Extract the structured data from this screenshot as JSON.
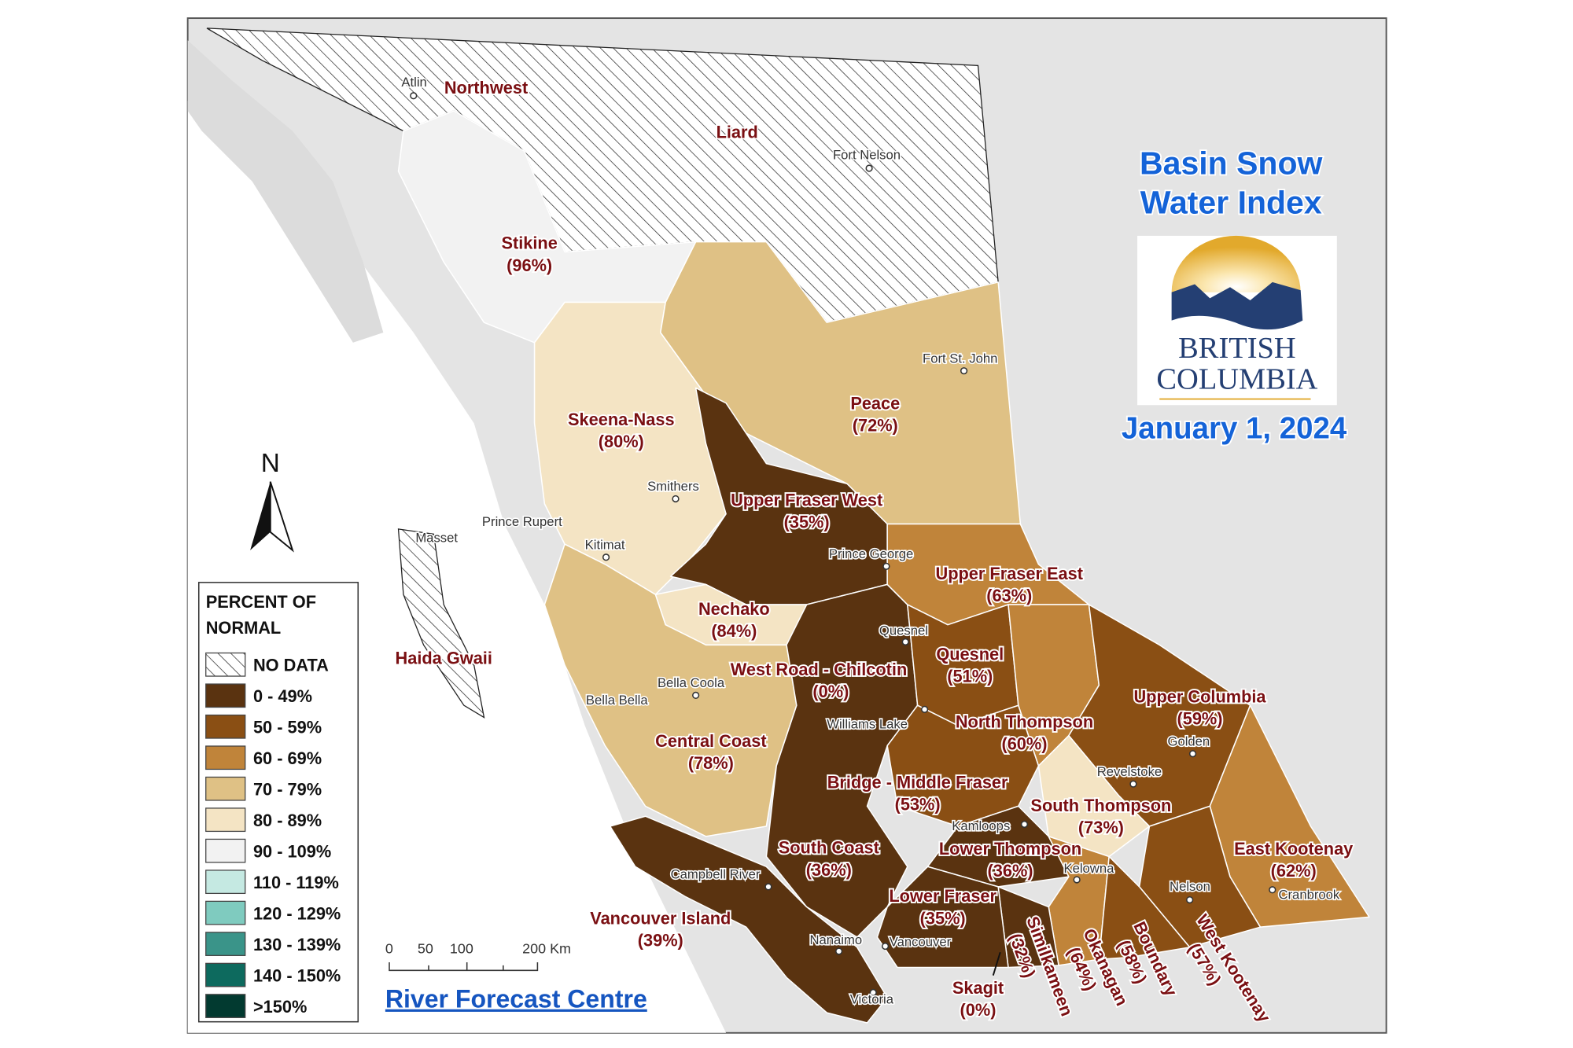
{
  "title": {
    "line1": "Basin Snow",
    "line2": "Water Index",
    "date": "January 1, 2024",
    "color": "#1463d8"
  },
  "logo": {
    "line1": "BRITISH",
    "line2": "COLUMBIA"
  },
  "credit": "River Forecast Centre",
  "north_arrow": "N",
  "scale_bar": {
    "labels": [
      "0",
      "50",
      "100",
      "200 Km"
    ]
  },
  "legend": {
    "title_line1": "PERCENT OF",
    "title_line2": "NORMAL",
    "items": [
      {
        "label": "NO DATA",
        "color": "hatch"
      },
      {
        "label": "0 - 49%",
        "color": "#5a3310"
      },
      {
        "label": "50 - 59%",
        "color": "#8a4f14"
      },
      {
        "label": "60 - 69%",
        "color": "#c0843a"
      },
      {
        "label": "70 - 79%",
        "color": "#dfc185"
      },
      {
        "label": "80 - 89%",
        "color": "#f4e4c4"
      },
      {
        "label": "90 - 109%",
        "color": "#f2f2f2"
      },
      {
        "label": "110 - 119%",
        "color": "#c5e9e2"
      },
      {
        "label": "120 - 129%",
        "color": "#7fcbbf"
      },
      {
        "label": "130 - 139%",
        "color": "#3a9489"
      },
      {
        "label": "140 - 150%",
        "color": "#0d6a5e"
      },
      {
        "label": ">150%",
        "color": "#023a30"
      }
    ]
  },
  "basins": {
    "northwest": {
      "name": "Northwest",
      "value": ""
    },
    "liard": {
      "name": "Liard",
      "value": ""
    },
    "haida_gwaii": {
      "name": "Haida Gwaii",
      "value": ""
    },
    "stikine": {
      "name": "Stikine",
      "value": "(96%)"
    },
    "skeena_nass": {
      "name": "Skeena-Nass",
      "value": "(80%)"
    },
    "peace": {
      "name": "Peace",
      "value": "(72%)"
    },
    "upper_fraser_west": {
      "name": "Upper Fraser West",
      "value": "(35%)"
    },
    "upper_fraser_east": {
      "name": "Upper Fraser East",
      "value": "(63%)"
    },
    "nechako": {
      "name": "Nechako",
      "value": "(84%)"
    },
    "quesnel": {
      "name": "Quesnel",
      "value": "(51%)"
    },
    "west_road_chilcotin": {
      "name": "West Road - Chilcotin",
      "value": "(0%)"
    },
    "upper_columbia": {
      "name": "Upper Columbia",
      "value": "(59%)"
    },
    "north_thompson": {
      "name": "North Thompson",
      "value": "(60%)"
    },
    "central_coast": {
      "name": "Central Coast",
      "value": "(78%)"
    },
    "bridge_middle_fraser": {
      "name": "Bridge - Middle Fraser",
      "value": "(53%)"
    },
    "south_thompson": {
      "name": "South Thompson",
      "value": "(73%)"
    },
    "south_coast": {
      "name": "South Coast",
      "value": "(36%)"
    },
    "lower_thompson": {
      "name": "Lower Thompson",
      "value": "(36%)"
    },
    "east_kootenay": {
      "name": "East Kootenay",
      "value": "(62%)"
    },
    "lower_fraser": {
      "name": "Lower Fraser",
      "value": "(35%)"
    },
    "vancouver_island": {
      "name": "Vancouver Island",
      "value": "(39%)"
    },
    "skagit": {
      "name": "Skagit",
      "value": "(0%)"
    },
    "similkameen": {
      "name": "Similkameen",
      "value": "(32%)"
    },
    "okanagan": {
      "name": "Okanagan",
      "value": "(64%)"
    },
    "boundary": {
      "name": "Boundary",
      "value": "(58%)"
    },
    "west_kootenay": {
      "name": "West Kootenay",
      "value": "(57%)"
    }
  },
  "cities": [
    "Atlin",
    "Fort Nelson",
    "Fort St. John",
    "Smithers",
    "Prince Rupert",
    "Masset",
    "Kitimat",
    "Prince George",
    "Quesnel",
    "Bella Coola",
    "Bella Bella",
    "Williams Lake",
    "Golden",
    "Revelstoke",
    "Kamloops",
    "Kelowna",
    "Campbell River",
    "Nelson",
    "Cranbrook",
    "Nanaimo",
    "Vancouver",
    "Victoria"
  ]
}
